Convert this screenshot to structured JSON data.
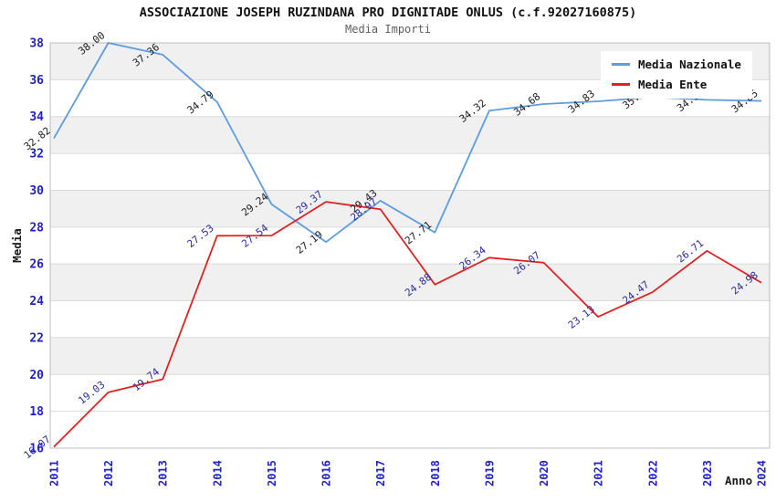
{
  "chart": {
    "title": "ASSOCIAZIONE JOSEPH RUZINDANA PRO DIGNITADE ONLUS (c.f.92027160875)",
    "subtitle": "Media Importi",
    "ylabel": "Media",
    "xlabel": "Anno",
    "legend": [
      {
        "label": "Media Nazionale",
        "color": "#5E9CE0"
      },
      {
        "label": "Media Ente",
        "color": "#E02222"
      }
    ]
  },
  "chart_data": {
    "type": "line",
    "x": [
      2011,
      2012,
      2013,
      2014,
      2015,
      2016,
      2017,
      2018,
      2019,
      2020,
      2021,
      2022,
      2023,
      2024
    ],
    "series": [
      {
        "name": "Media Nazionale",
        "color": "#5E9CE0",
        "label_color": "#1a1a1a",
        "values": [
          32.82,
          38.0,
          37.36,
          34.79,
          29.24,
          27.19,
          29.43,
          27.71,
          34.32,
          34.68,
          34.83,
          35.05,
          34.91,
          34.85
        ]
      },
      {
        "name": "Media Ente",
        "color": "#E02222",
        "label_color": "#2B2B9E",
        "values": [
          16.07,
          19.03,
          19.74,
          27.53,
          27.54,
          29.37,
          28.97,
          24.88,
          26.34,
          26.07,
          23.13,
          24.47,
          26.71,
          24.98
        ]
      }
    ],
    "ylim": [
      16,
      38
    ],
    "ytick_step": 2,
    "grid": true,
    "band_color": "#F0F0F0",
    "gridline_color": "#DBDBDB",
    "plot_border_color": "#BDBDBD",
    "axis_tick_color": "#1F1FCF",
    "legend_position": "top-right"
  }
}
